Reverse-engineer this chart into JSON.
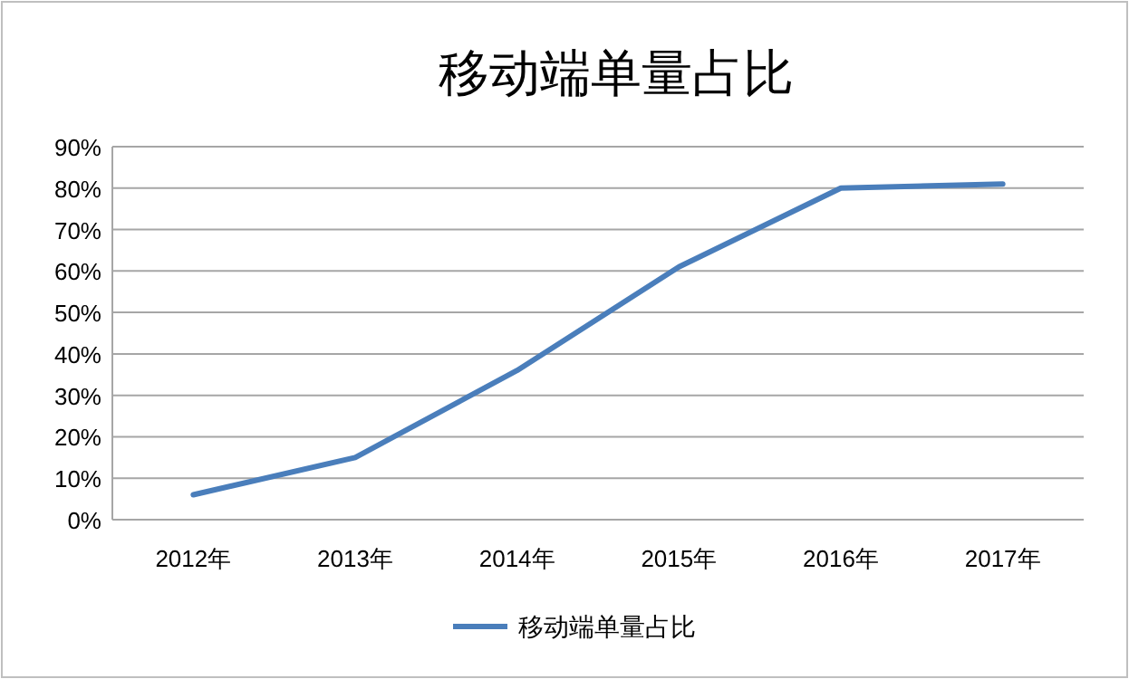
{
  "chart_data": {
    "type": "line",
    "title": "移动端单量占比",
    "categories": [
      "2012年",
      "2013年",
      "2014年",
      "2015年",
      "2016年",
      "2017年"
    ],
    "series": [
      {
        "name": "移动端单量占比",
        "color": "#4a7ebb",
        "values": [
          6,
          15,
          36,
          61,
          80,
          81
        ]
      }
    ],
    "ylim": [
      0,
      90
    ],
    "yticks": [
      {
        "value": 0,
        "label": "0%"
      },
      {
        "value": 10,
        "label": "10%"
      },
      {
        "value": 20,
        "label": "20%"
      },
      {
        "value": 30,
        "label": "30%"
      },
      {
        "value": 40,
        "label": "40%"
      },
      {
        "value": 50,
        "label": "50%"
      },
      {
        "value": 60,
        "label": "60%"
      },
      {
        "value": 70,
        "label": "70%"
      },
      {
        "value": 80,
        "label": "80%"
      },
      {
        "value": 90,
        "label": "90%"
      }
    ],
    "grid": "y",
    "legend": "bottom",
    "marker": "none",
    "line_style": "solid"
  }
}
